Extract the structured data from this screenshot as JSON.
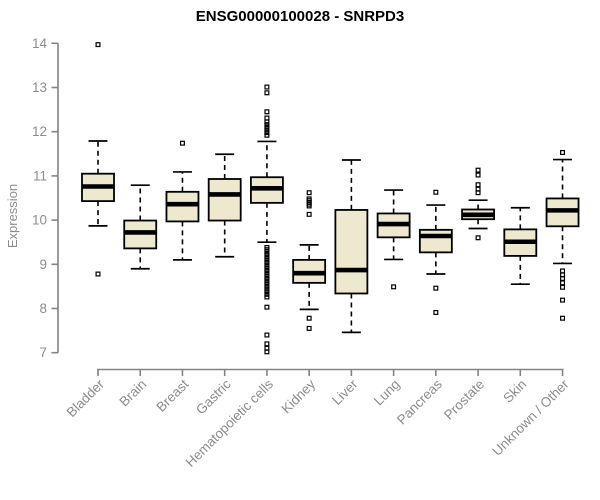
{
  "chart_data": {
    "type": "box",
    "title": "ENSG00000100028 - SNRPD3",
    "ylabel": "Expression",
    "xlabel": "",
    "ylim": [
      7,
      14
    ],
    "yticks": [
      7,
      8,
      9,
      10,
      11,
      12,
      13,
      14
    ],
    "grid": false,
    "legend": "none",
    "colors": {
      "box_fill": "#ede8ce",
      "box_stroke": "#000000",
      "median": "#000000",
      "axis": "#848484",
      "tick_label": "#8c8c8c",
      "title": "#000000",
      "background": "#ffffff"
    },
    "categories": [
      "Bladder",
      "Brain",
      "Breast",
      "Gastric",
      "Hematopoietic cells",
      "Kidney",
      "Liver",
      "Lung",
      "Pancreas",
      "Prostate",
      "Skin",
      "Unknown / Other"
    ],
    "series": [
      {
        "category": "Bladder",
        "whisker_low": 9.87,
        "q1": 10.43,
        "median": 10.76,
        "q3": 11.05,
        "whisker_high": 11.79,
        "outliers": [
          13.97,
          8.78
        ]
      },
      {
        "category": "Brain",
        "whisker_low": 8.9,
        "q1": 9.36,
        "median": 9.72,
        "q3": 9.99,
        "whisker_high": 10.79,
        "outliers": []
      },
      {
        "category": "Breast",
        "whisker_low": 9.1,
        "q1": 9.97,
        "median": 10.36,
        "q3": 10.64,
        "whisker_high": 11.09,
        "outliers": [
          11.74
        ]
      },
      {
        "category": "Gastric",
        "whisker_low": 9.17,
        "q1": 9.99,
        "median": 10.58,
        "q3": 10.93,
        "whisker_high": 11.49,
        "outliers": []
      },
      {
        "category": "Hematopoietic cells",
        "whisker_low": 9.5,
        "q1": 10.39,
        "median": 10.72,
        "q3": 10.97,
        "whisker_high": 11.78,
        "outliers": [
          13.01,
          12.88,
          12.45,
          12.31,
          12.22,
          12.16,
          12.1,
          12.04,
          11.98,
          11.92,
          9.38,
          9.33,
          9.28,
          9.22,
          9.16,
          9.1,
          9.04,
          8.98,
          8.92,
          8.86,
          8.8,
          8.74,
          8.68,
          8.62,
          8.56,
          8.5,
          8.44,
          8.38,
          8.32,
          8.26,
          8.03,
          7.4,
          7.2,
          7.1,
          7.02
        ]
      },
      {
        "category": "Kidney",
        "whisker_low": 7.98,
        "q1": 8.58,
        "median": 8.8,
        "q3": 9.1,
        "whisker_high": 9.44,
        "outliers": [
          10.62,
          10.48,
          10.44,
          10.4,
          10.36,
          10.32,
          10.13,
          7.78,
          7.55
        ]
      },
      {
        "category": "Liver",
        "whisker_low": 7.46,
        "q1": 8.34,
        "median": 8.87,
        "q3": 10.23,
        "whisker_high": 11.36,
        "outliers": []
      },
      {
        "category": "Lung",
        "whisker_low": 9.11,
        "q1": 9.61,
        "median": 9.91,
        "q3": 10.15,
        "whisker_high": 10.68,
        "outliers": [
          8.49
        ]
      },
      {
        "category": "Pancreas",
        "whisker_low": 8.78,
        "q1": 9.27,
        "median": 9.64,
        "q3": 9.78,
        "whisker_high": 10.34,
        "outliers": [
          10.63,
          8.46,
          7.91
        ]
      },
      {
        "category": "Prostate",
        "whisker_low": 9.81,
        "q1": 10.02,
        "median": 10.12,
        "q3": 10.24,
        "whisker_high": 10.45,
        "outliers": [
          11.13,
          11.02,
          10.8,
          10.7,
          10.62,
          9.6
        ]
      },
      {
        "category": "Skin",
        "whisker_low": 8.55,
        "q1": 9.19,
        "median": 9.51,
        "q3": 9.79,
        "whisker_high": 10.28,
        "outliers": []
      },
      {
        "category": "Unknown / Other",
        "whisker_low": 9.02,
        "q1": 9.86,
        "median": 10.22,
        "q3": 10.49,
        "whisker_high": 11.37,
        "outliers": [
          11.53,
          8.85,
          8.76,
          8.68,
          8.58,
          8.48,
          8.19,
          7.78
        ]
      }
    ]
  }
}
